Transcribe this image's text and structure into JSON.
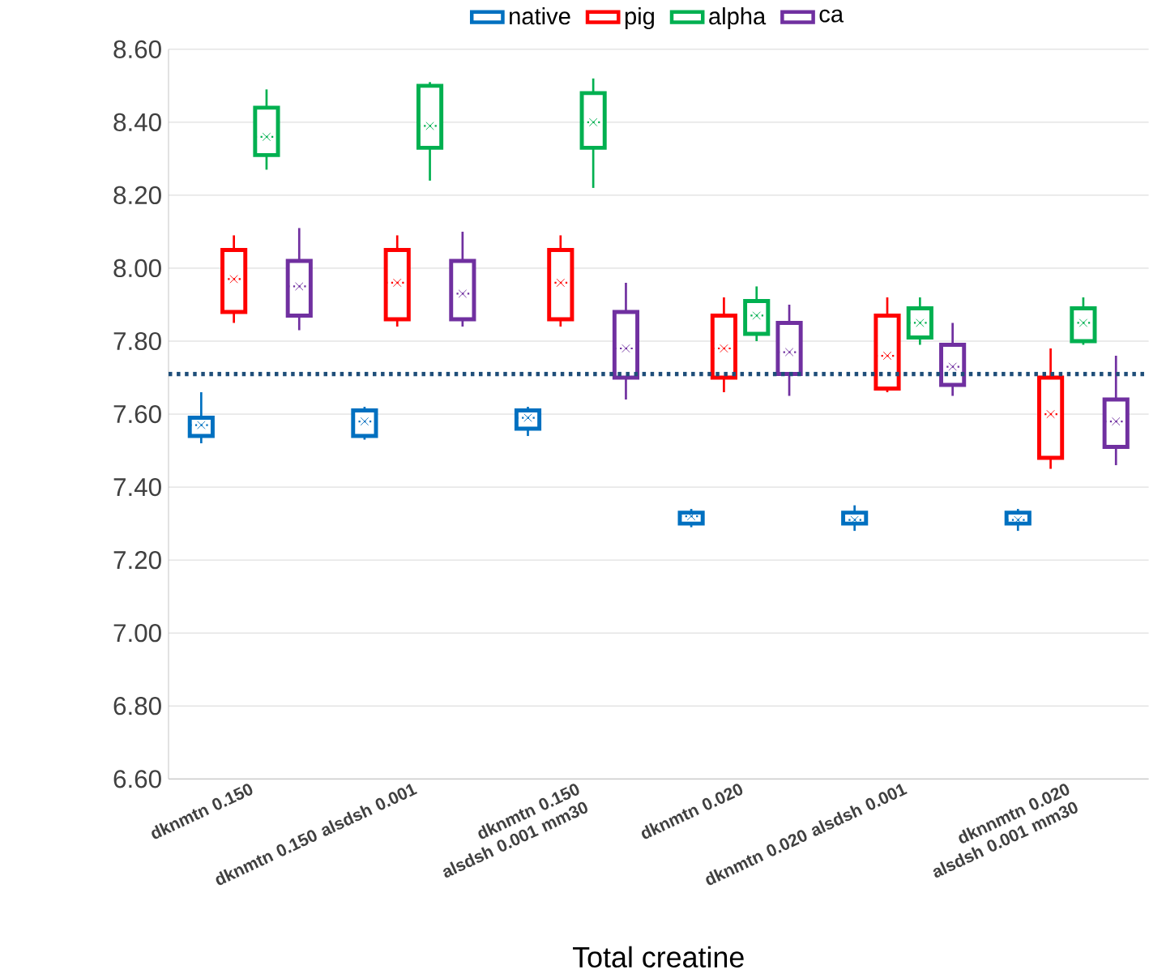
{
  "chart_data": {
    "type": "box",
    "xlabel": "Total creatine",
    "categories": [
      "dknmtn 0.150",
      "dknmtn 0.150 alsdsh 0.001",
      "dknmtn 0.150 alsdsh 0.001 mm30",
      "dknmtn 0.020",
      "dknmtn 0.020 alsdsh 0.001",
      "dknnmtn 0.020 alsdsh 0.001 mm30"
    ],
    "ylim": [
      6.6,
      8.6
    ],
    "yticks": [
      {
        "value": 6.6,
        "label": "6.60"
      },
      {
        "value": 6.8,
        "label": "6.80"
      },
      {
        "value": 7.0,
        "label": "7.00"
      },
      {
        "value": 7.2,
        "label": "7.20"
      },
      {
        "value": 7.4,
        "label": "7.40"
      },
      {
        "value": 7.6,
        "label": "7.60"
      },
      {
        "value": 7.8,
        "label": "7.80"
      },
      {
        "value": 8.0,
        "label": "8.00"
      },
      {
        "value": 8.2,
        "label": "8.20"
      },
      {
        "value": 8.4,
        "label": "8.40"
      },
      {
        "value": 8.6,
        "label": "8.60"
      }
    ],
    "grid": "y",
    "legend": "top",
    "ref_lines": [
      {
        "axis": "y",
        "value": 7.71,
        "color": "#1f4e79",
        "line_style": "dotted"
      }
    ],
    "series": [
      {
        "name": "native",
        "color": "#0070c0",
        "boxes": [
          {
            "low": 7.52,
            "q1": 7.54,
            "median": 7.57,
            "q3": 7.59,
            "high": 7.66,
            "mean": 7.57
          },
          {
            "low": 7.53,
            "q1": 7.54,
            "median": 7.58,
            "q3": 7.61,
            "high": 7.62,
            "mean": 7.58
          },
          {
            "low": 7.54,
            "q1": 7.56,
            "median": 7.59,
            "q3": 7.61,
            "high": 7.62,
            "mean": 7.59
          },
          {
            "low": 7.29,
            "q1": 7.3,
            "median": 7.32,
            "q3": 7.33,
            "high": 7.34,
            "mean": 7.32
          },
          {
            "low": 7.28,
            "q1": 7.3,
            "median": 7.31,
            "q3": 7.33,
            "high": 7.35,
            "mean": 7.31
          },
          {
            "low": 7.28,
            "q1": 7.3,
            "median": 7.31,
            "q3": 7.33,
            "high": 7.34,
            "mean": 7.31
          }
        ]
      },
      {
        "name": "pig",
        "color": "#ff0000",
        "boxes": [
          {
            "low": 7.85,
            "q1": 7.88,
            "median": 7.97,
            "q3": 8.05,
            "high": 8.09,
            "mean": 7.97
          },
          {
            "low": 7.84,
            "q1": 7.86,
            "median": 7.96,
            "q3": 8.05,
            "high": 8.09,
            "mean": 7.96
          },
          {
            "low": 7.84,
            "q1": 7.86,
            "median": 7.96,
            "q3": 8.05,
            "high": 8.09,
            "mean": 7.96
          },
          {
            "low": 7.66,
            "q1": 7.7,
            "median": 7.78,
            "q3": 7.87,
            "high": 7.92,
            "mean": 7.78
          },
          {
            "low": 7.66,
            "q1": 7.67,
            "median": 7.76,
            "q3": 7.87,
            "high": 7.92,
            "mean": 7.76
          },
          {
            "low": 7.45,
            "q1": 7.48,
            "median": 7.6,
            "q3": 7.7,
            "high": 7.78,
            "mean": 7.6
          }
        ]
      },
      {
        "name": "alpha",
        "color": "#00b050",
        "boxes": [
          {
            "low": 8.27,
            "q1": 8.31,
            "median": 8.36,
            "q3": 8.44,
            "high": 8.49,
            "mean": 8.36
          },
          {
            "low": 8.24,
            "q1": 8.33,
            "median": 8.39,
            "q3": 8.5,
            "high": 8.51,
            "mean": 8.39
          },
          {
            "low": 8.22,
            "q1": 8.33,
            "median": 8.4,
            "q3": 8.48,
            "high": 8.52,
            "mean": 8.4
          },
          {
            "low": 7.8,
            "q1": 7.82,
            "median": 7.87,
            "q3": 7.91,
            "high": 7.95,
            "mean": 7.87
          },
          {
            "low": 7.79,
            "q1": 7.81,
            "median": 7.85,
            "q3": 7.89,
            "high": 7.92,
            "mean": 7.85
          },
          {
            "low": 7.79,
            "q1": 7.8,
            "median": 7.85,
            "q3": 7.89,
            "high": 7.92,
            "mean": 7.85
          }
        ]
      },
      {
        "name": "ca",
        "color": "#7030a0",
        "boxes": [
          {
            "low": 7.83,
            "q1": 7.87,
            "median": 7.95,
            "q3": 8.02,
            "high": 8.11,
            "mean": 7.95
          },
          {
            "low": 7.84,
            "q1": 7.86,
            "median": 7.93,
            "q3": 8.02,
            "high": 8.1,
            "mean": 7.93
          },
          {
            "low": 7.64,
            "q1": 7.7,
            "median": 7.78,
            "q3": 7.88,
            "high": 7.96,
            "mean": 7.78
          },
          {
            "low": 7.65,
            "q1": 7.71,
            "median": 7.77,
            "q3": 7.85,
            "high": 7.9,
            "mean": 7.77
          },
          {
            "low": 7.65,
            "q1": 7.68,
            "median": 7.73,
            "q3": 7.79,
            "high": 7.85,
            "mean": 7.73
          },
          {
            "low": 7.46,
            "q1": 7.51,
            "median": 7.58,
            "q3": 7.64,
            "high": 7.76,
            "mean": 7.58
          }
        ]
      }
    ]
  }
}
